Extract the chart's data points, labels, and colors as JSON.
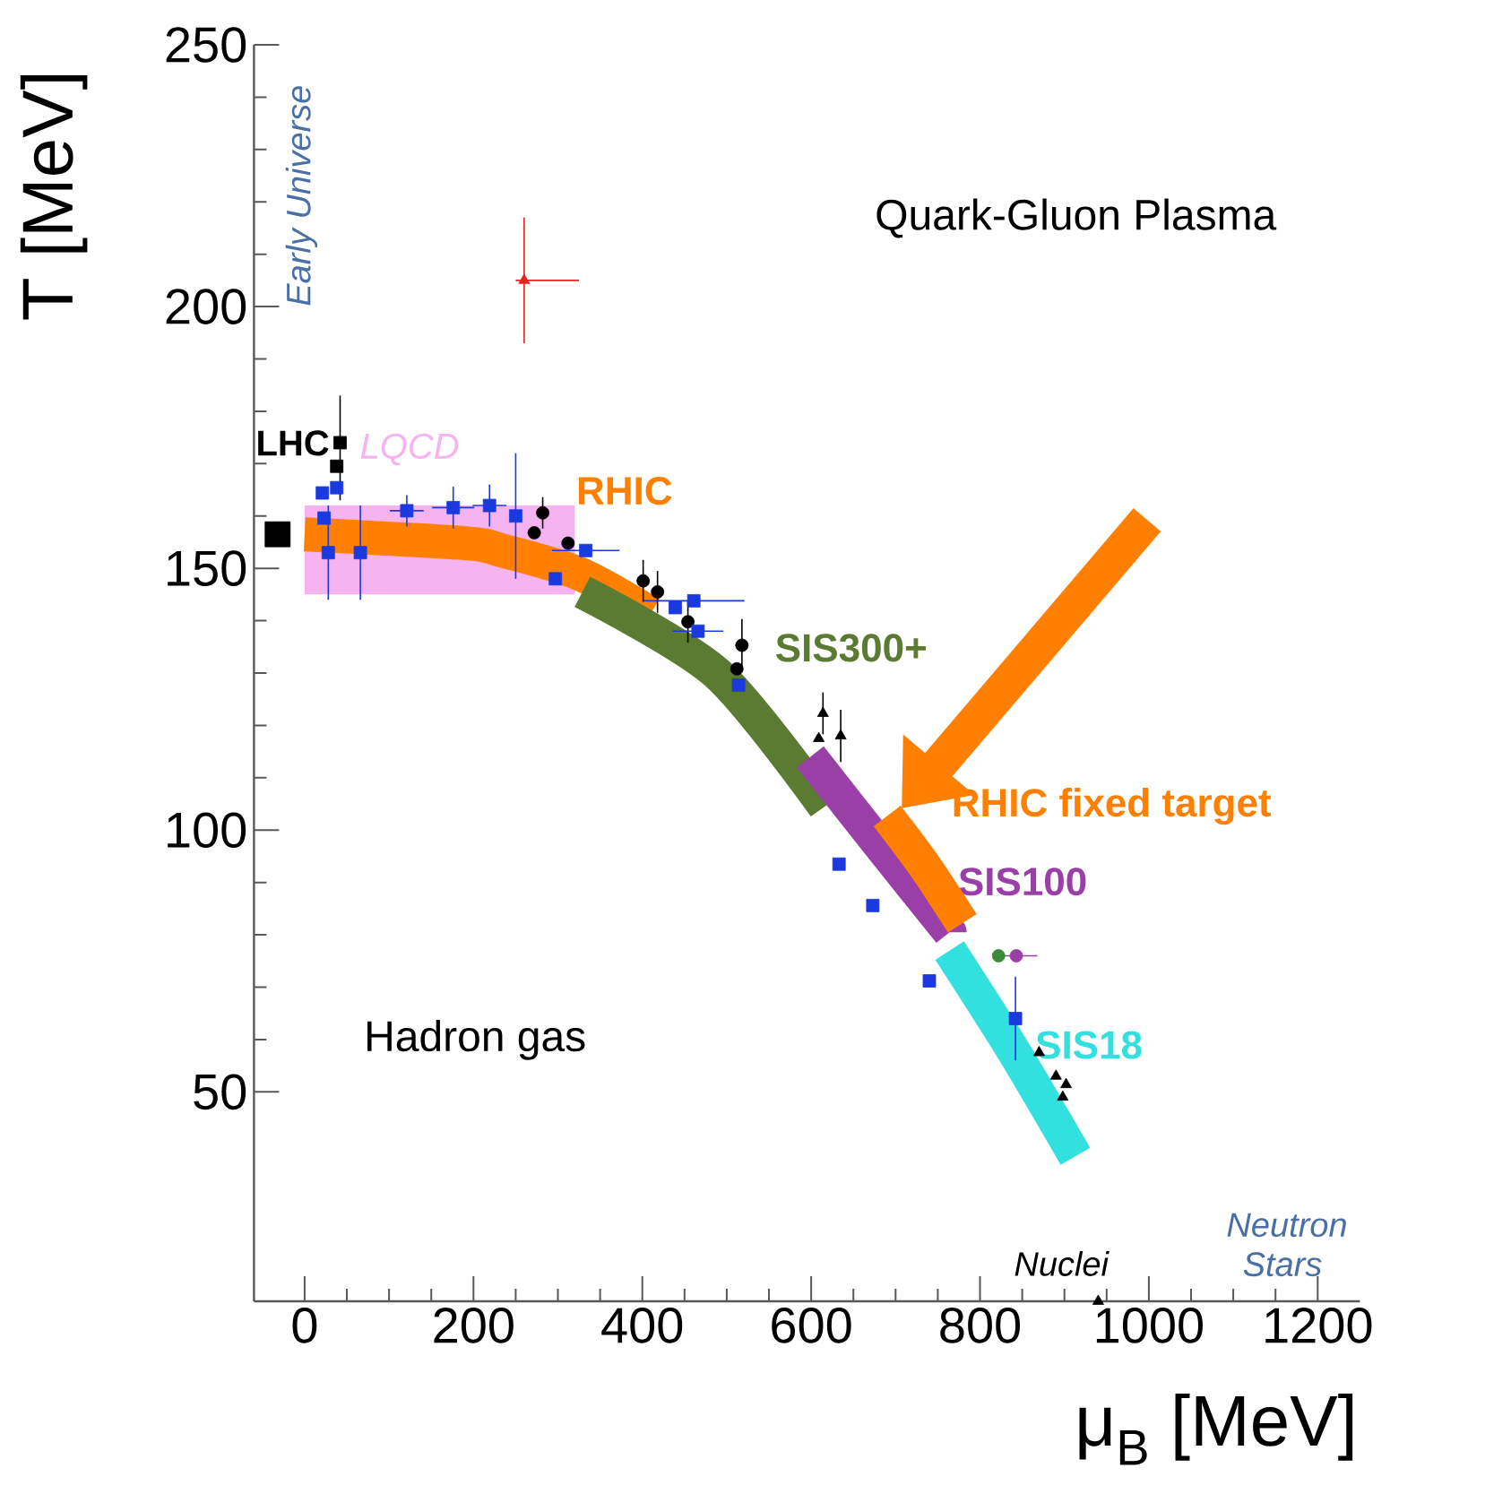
{
  "chart_data": {
    "type": "scatter",
    "xlabel": "μ$_{B}$ [MeV]",
    "ylabel": "T [MeV]",
    "xlim": [
      -60,
      1250
    ],
    "ylim": [
      10,
      250
    ],
    "xticks": [
      0,
      200,
      400,
      600,
      800,
      1000,
      1200
    ],
    "yticks": [
      50,
      100,
      150,
      200,
      250
    ],
    "annotations": [
      "Quark-Gluon Plasma",
      "Hadron gas",
      "Early Universe",
      "Nuclei",
      "Neutron Stars"
    ],
    "series": [
      {
        "type": "line",
        "name": "LQCD",
        "color": "#f5b3f0",
        "marker": "none",
        "x": [
          0,
          320
        ],
        "values": [
          null,
          null
        ],
        "lower": [
          145,
          145
        ],
        "upper": [
          162,
          162
        ]
      },
      {
        "type": "line",
        "name": "RHIC",
        "color": "#ff7f00",
        "marker": "none",
        "x": [
          0,
          190,
          234,
          325,
          410
        ],
        "values": [
          156.5,
          154.8,
          153.4,
          149,
          141.4
        ]
      },
      {
        "type": "line",
        "name": "SIS300+",
        "color": "#5b7a32",
        "marker": "none",
        "x": [
          329,
          488,
          616
        ],
        "values": [
          145.5,
          130,
          104.5
        ]
      },
      {
        "type": "line",
        "name": "SIS100",
        "color": "#9b3fa8",
        "marker": "none",
        "x": [
          599,
          679,
          764
        ],
        "values": [
          114,
          97.6,
          80.5
        ]
      },
      {
        "type": "line",
        "name": "RHIC fixed target",
        "color": "#ff7f00",
        "marker": "none",
        "x": [
          690,
          735,
          779
        ],
        "values": [
          102.7,
          93,
          82.2
        ]
      },
      {
        "type": "line",
        "name": "SIS18",
        "color": "#33e0e0",
        "marker": "none",
        "x": [
          764,
          839,
          913
        ],
        "values": [
          77,
          58,
          37.7
        ]
      },
      {
        "type": "scatter",
        "name": "LHC",
        "color": "#000000",
        "marker": "square",
        "x": [
          -32
        ],
        "values": [
          156.5
        ]
      },
      {
        "type": "scatter",
        "color": "#000000",
        "marker": "square",
        "x": [
          38,
          42
        ],
        "values": [
          169.5,
          174
        ],
        "errors": [
          null,
          [
            163,
            183
          ]
        ]
      },
      {
        "color": "#000000",
        "marker": "circle",
        "x": [
          282,
          272,
          312,
          401,
          418,
          454,
          518,
          512
        ],
        "values": [
          160.6,
          156.8,
          154.8,
          147.6,
          145.5,
          139.8,
          135.3,
          130.8
        ],
        "errors": [
          3,
          null,
          null,
          4,
          4,
          4,
          5,
          null
        ]
      },
      {
        "color": "#1a3ae0",
        "marker": "square",
        "x": [
          21,
          38,
          23,
          28,
          66,
          121,
          176,
          219,
          250,
          297,
          333,
          439,
          461,
          466,
          514,
          633,
          673,
          740,
          842
        ],
        "values": [
          164.4,
          165.4,
          159.6,
          153,
          153,
          161,
          161.6,
          162,
          160,
          148,
          153.4,
          142.5,
          143.8,
          138,
          127.7,
          93.5,
          85.6,
          71.2,
          64
        ],
        "errors": [
          null,
          null,
          null,
          9,
          9,
          3,
          4,
          4,
          12,
          null,
          null,
          null,
          null,
          null,
          null,
          null,
          null,
          null,
          8
        ],
        "xerrors": [
          null,
          null,
          null,
          null,
          null,
          20,
          25,
          20,
          null,
          null,
          40,
          null,
          60,
          30,
          null,
          null,
          null,
          null,
          null
        ]
      },
      {
        "color": "#000000",
        "marker": "triangle",
        "x": [
          614,
          609,
          635,
          870,
          890,
          902,
          898
        ],
        "values": [
          122.3,
          117.5,
          118,
          57.5,
          53,
          51.4,
          49
        ],
        "errors": [
          4,
          null,
          5,
          null,
          null,
          null,
          null
        ]
      },
      {
        "color": "#ee2020",
        "marker": "triangle",
        "x": [
          260
        ],
        "values": [
          205
        ],
        "errors": [
          [
            193,
            217
          ]
        ],
        "xerrors": [
          [
            250,
            325
          ]
        ]
      },
      {
        "color": "#3a8a3a",
        "marker": "circle",
        "x": [
          822
        ],
        "values": [
          76
        ]
      },
      {
        "color": "#9b3fa8",
        "marker": "circle",
        "x": [
          843
        ],
        "values": [
          76
        ],
        "xerrors": [
          25
        ]
      },
      {
        "color": "#000000",
        "marker": "triangle",
        "x": [
          940
        ],
        "values": [
          10
        ]
      }
    ]
  }
}
